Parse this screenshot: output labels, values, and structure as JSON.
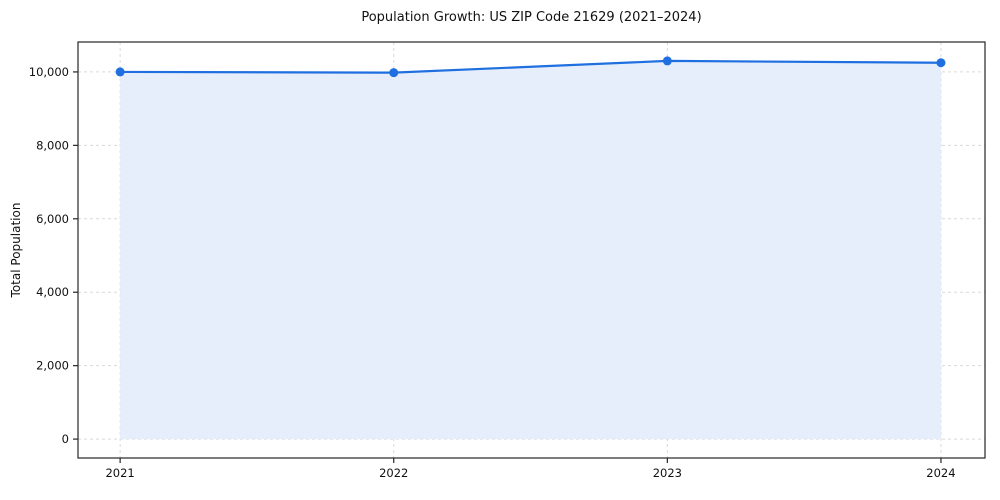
{
  "chart_data": {
    "type": "line",
    "title": "Population Growth: US ZIP Code 21629 (2021–2024)",
    "xlabel": "",
    "ylabel": "Total Population",
    "x": [
      2021,
      2022,
      2023,
      2024
    ],
    "xtick_labels": [
      "2021",
      "2022",
      "2023",
      "2024"
    ],
    "series": [
      {
        "name": "Total Population",
        "values": [
          10000,
          9980,
          10300,
          10250
        ]
      }
    ],
    "ytick_values": [
      0,
      2000,
      4000,
      6000,
      8000,
      10000
    ],
    "ytick_labels": [
      "0",
      "2,000",
      "4,000",
      "6,000",
      "8,000",
      "10,000"
    ],
    "ylim": [
      -515,
      10815
    ],
    "grid": "dashed",
    "legend": "none",
    "colors": {
      "line": "#1f6fe0",
      "marker": "#1f6fe0",
      "area_fill": "#e6eefb",
      "grid": "#d9d9d9",
      "axis": "#262626",
      "text": "#111111"
    }
  }
}
